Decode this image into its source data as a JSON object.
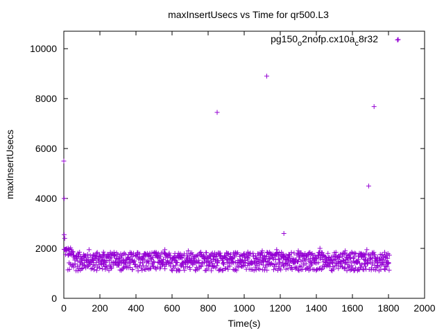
{
  "chart_data": {
    "type": "scatter",
    "title": "maxInsertUsecs vs Time for qr500.L3",
    "xlabel": "Time(s)",
    "ylabel": "maxInsertUsecs",
    "xlim": [
      0,
      2000
    ],
    "ylim": [
      0,
      10700
    ],
    "xticks": [
      0,
      200,
      400,
      600,
      800,
      1000,
      1200,
      1400,
      1600,
      1800,
      2000
    ],
    "yticks": [
      0,
      2000,
      4000,
      6000,
      8000,
      10000
    ],
    "grid": false,
    "legend_position": "top-right",
    "legend": {
      "base": "pg150",
      "sub1": "o",
      "mid": "2nofp.cx10a",
      "sub2": "c",
      "tail": "8r32"
    },
    "series_color": "#9400d3",
    "marker": "plus",
    "series": [
      {
        "outliers": [
          [
            0,
            5500
          ],
          [
            2,
            4000
          ],
          [
            2,
            2550
          ],
          [
            5,
            2400
          ],
          [
            850,
            7450
          ],
          [
            1125,
            8900
          ],
          [
            1220,
            2600
          ],
          [
            1690,
            4500
          ],
          [
            1720,
            7680
          ],
          [
            1850,
            10350
          ]
        ],
        "band": {
          "x_range": [
            0,
            1800
          ],
          "x_step": 5,
          "upper_band": [
            1400,
            1850
          ],
          "lower_band": [
            1100,
            1450
          ],
          "early_upper": [
            1700,
            2100
          ],
          "sparse_highs": [
            [
              140,
              1950
            ],
            [
              220,
              1850
            ],
            [
              450,
              1800
            ],
            [
              560,
              1950
            ],
            [
              690,
              1900
            ],
            [
              1020,
              1850
            ],
            [
              1100,
              1900
            ],
            [
              1180,
              1950
            ],
            [
              1300,
              1900
            ],
            [
              1420,
              2000
            ],
            [
              1560,
              1900
            ],
            [
              1680,
              1950
            ]
          ]
        }
      }
    ]
  }
}
